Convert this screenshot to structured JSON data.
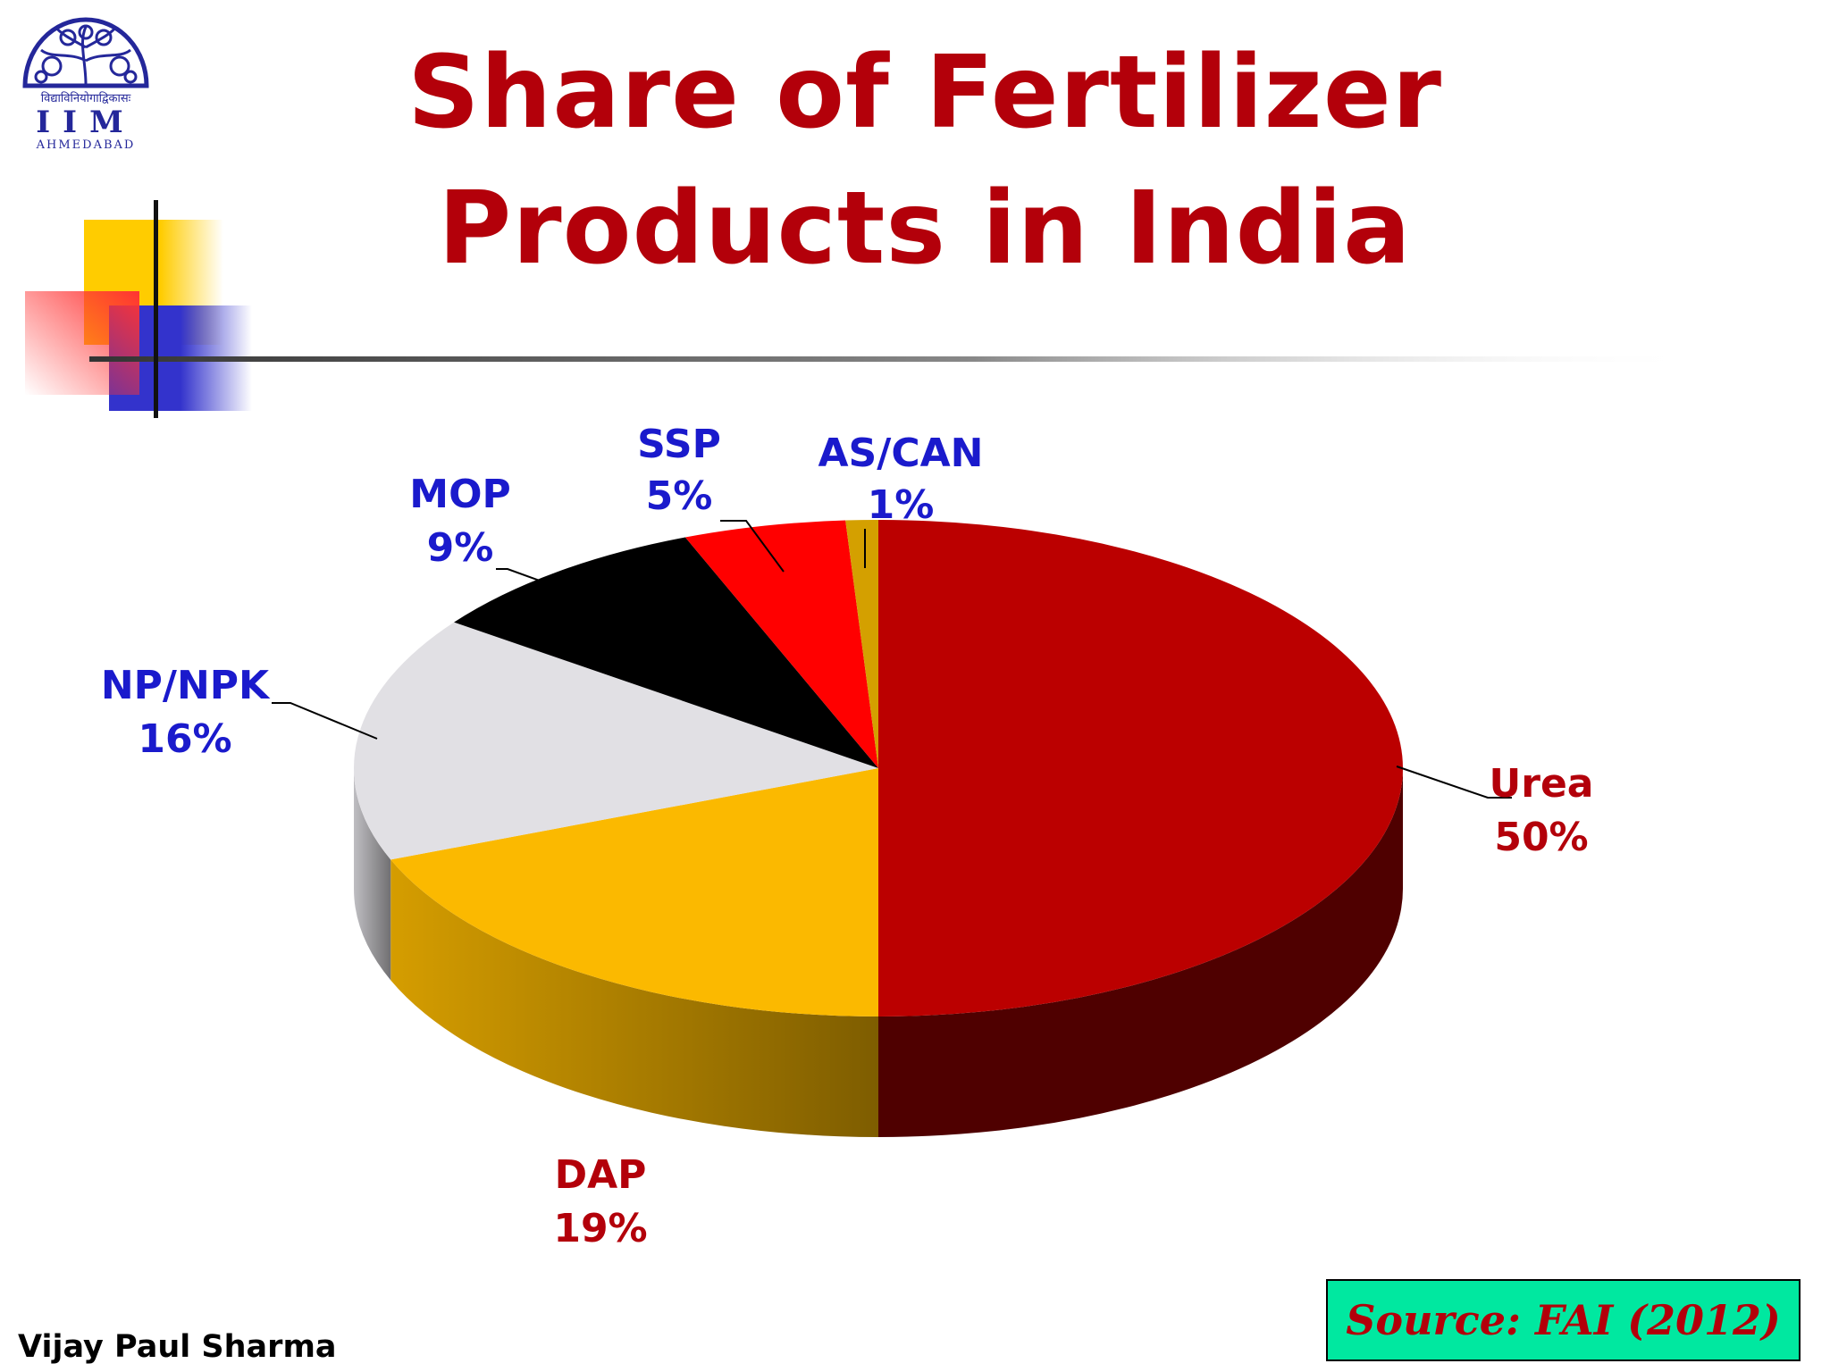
{
  "slide": {
    "title": "Share of Fertilizer Products in India",
    "author": "Vijay Paul Sharma",
    "source": "Source: FAI (2012)",
    "logo": {
      "icon": "iim-ahmedabad-logo",
      "text_hindi": "विद्याविनियोगाद्विकासः",
      "text_main": "IIM",
      "text_sub": "AHMEDABAD"
    }
  },
  "colors": {
    "title": "#b3000a",
    "source_box": "#00e8a0",
    "label_red": "#b3000a",
    "label_blue": "#1a1acc"
  },
  "chart_data": {
    "type": "pie",
    "style": "3d",
    "title": "Share of Fertilizer Products in India",
    "unit": "%",
    "slices": [
      {
        "name": "Urea",
        "value": 50,
        "color": "#bb0000",
        "label_color": "#b3000a"
      },
      {
        "name": "DAP",
        "value": 19,
        "color": "#fbb900",
        "label_color": "#b3000a"
      },
      {
        "name": "NP/NPK",
        "value": 16,
        "color": "#e1e0e4",
        "label_color": "#1a1acc"
      },
      {
        "name": "MOP",
        "value": 9,
        "color": "#000000",
        "label_color": "#1a1acc"
      },
      {
        "name": "SSP",
        "value": 5,
        "color": "#ff0000",
        "label_color": "#1a1acc"
      },
      {
        "name": "AS/CAN",
        "value": 1,
        "color": "#d4a000",
        "label_color": "#1a1acc"
      }
    ]
  }
}
